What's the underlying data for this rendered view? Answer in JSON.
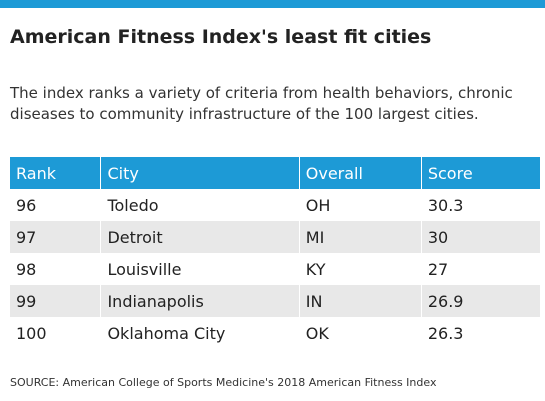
{
  "title": "American Fitness Index's least fit cities",
  "subtitle": "The index ranks a variety of criteria from health behaviors, chronic diseases to community infrastructure of the 100 largest cities.",
  "table": {
    "headers": [
      "Rank",
      "City",
      "Overall",
      "Score"
    ],
    "rows": [
      [
        "96",
        "Toledo",
        "OH",
        "30.3"
      ],
      [
        "97",
        "Detroit",
        "MI",
        "30"
      ],
      [
        "98",
        "Louisville",
        "KY",
        "27"
      ],
      [
        "99",
        "Indianapolis",
        "IN",
        "26.9"
      ],
      [
        "100",
        "Oklahoma City",
        "OK",
        "26.3"
      ]
    ]
  },
  "source": "SOURCE:  American College of Sports Medicine's 2018 American Fitness Index",
  "colors": {
    "accent": "#1d9ad6",
    "row_alt": "#e8e8e8"
  }
}
